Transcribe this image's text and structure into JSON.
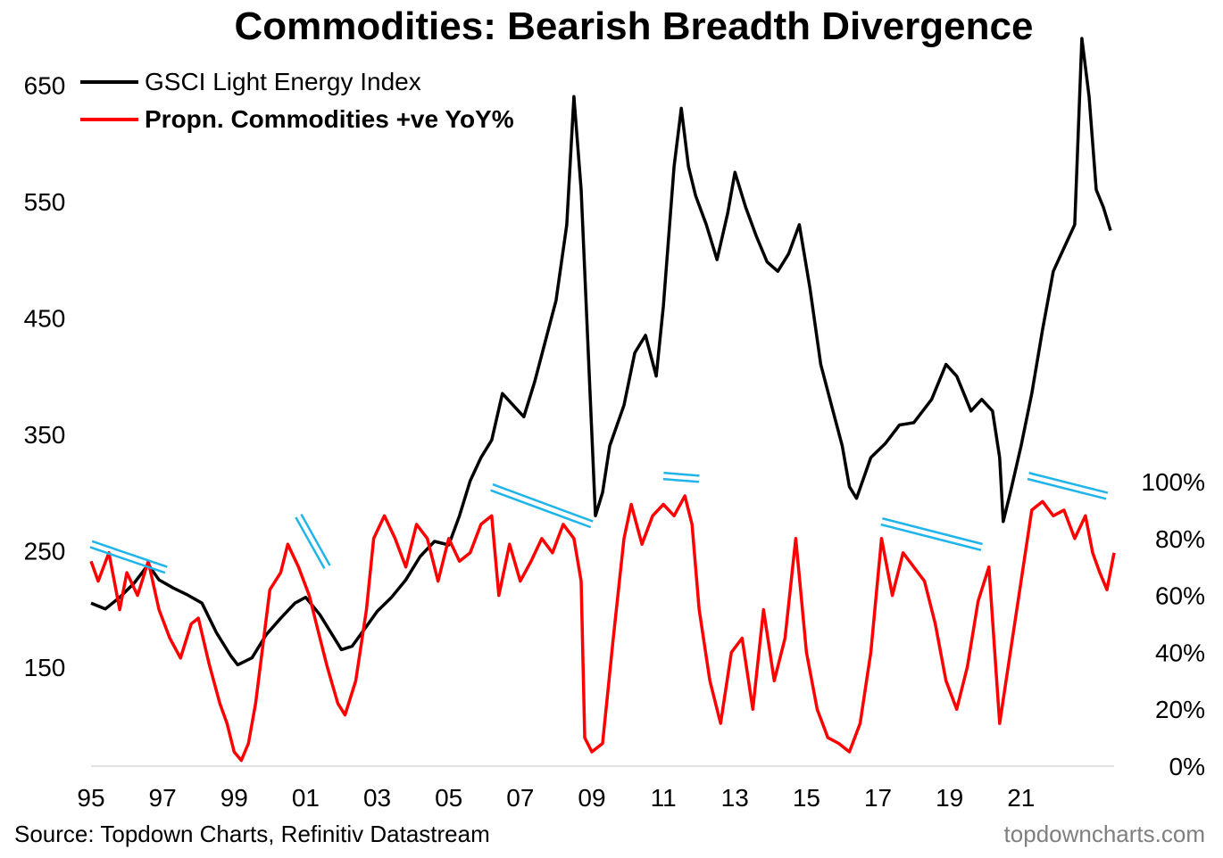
{
  "chart_data": {
    "type": "line",
    "title": "Commodities: Bearish Breadth Divergence",
    "source": "Source: Topdown Charts, Refinitiv Datastream",
    "brand": "topdowncharts.com",
    "x_ticks": [
      "95",
      "97",
      "99",
      "01",
      "03",
      "05",
      "07",
      "09",
      "11",
      "13",
      "15",
      "17",
      "19",
      "21"
    ],
    "x_range": [
      1995.0,
      2023.6
    ],
    "left_axis": {
      "ticks": [
        "650",
        "550",
        "450",
        "350",
        "250",
        "150"
      ],
      "tick_values": [
        650,
        550,
        450,
        350,
        250,
        150
      ],
      "range": [
        65,
        700
      ]
    },
    "right_axis": {
      "ticks": [
        "100%",
        "80%",
        "60%",
        "40%",
        "20%",
        "0%"
      ],
      "tick_values": [
        100,
        80,
        60,
        40,
        20,
        0
      ],
      "range": [
        0,
        100
      ]
    },
    "legend": {
      "position": "top-left"
    },
    "series": [
      {
        "name": "GSCI Light Energy Index",
        "axis": "left",
        "color": "#000000",
        "points": [
          [
            1995.0,
            205
          ],
          [
            1995.4,
            200
          ],
          [
            1995.8,
            210
          ],
          [
            1996.2,
            222
          ],
          [
            1996.6,
            238
          ],
          [
            1996.9,
            225
          ],
          [
            1997.3,
            218
          ],
          [
            1997.7,
            212
          ],
          [
            1998.1,
            205
          ],
          [
            1998.5,
            180
          ],
          [
            1998.9,
            160
          ],
          [
            1999.1,
            152
          ],
          [
            1999.5,
            158
          ],
          [
            1999.9,
            178
          ],
          [
            2000.3,
            192
          ],
          [
            2000.7,
            205
          ],
          [
            2001.0,
            210
          ],
          [
            2001.4,
            195
          ],
          [
            2001.8,
            175
          ],
          [
            2002.0,
            165
          ],
          [
            2002.3,
            168
          ],
          [
            2002.7,
            185
          ],
          [
            2003.0,
            198
          ],
          [
            2003.4,
            210
          ],
          [
            2003.8,
            225
          ],
          [
            2004.2,
            245
          ],
          [
            2004.6,
            258
          ],
          [
            2005.0,
            255
          ],
          [
            2005.3,
            280
          ],
          [
            2005.6,
            310
          ],
          [
            2005.9,
            330
          ],
          [
            2006.2,
            345
          ],
          [
            2006.5,
            385
          ],
          [
            2006.8,
            375
          ],
          [
            2007.1,
            365
          ],
          [
            2007.4,
            395
          ],
          [
            2007.7,
            430
          ],
          [
            2008.0,
            465
          ],
          [
            2008.3,
            530
          ],
          [
            2008.5,
            640
          ],
          [
            2008.7,
            560
          ],
          [
            2008.9,
            420
          ],
          [
            2009.1,
            280
          ],
          [
            2009.3,
            300
          ],
          [
            2009.5,
            340
          ],
          [
            2009.9,
            375
          ],
          [
            2010.2,
            420
          ],
          [
            2010.5,
            435
          ],
          [
            2010.8,
            400
          ],
          [
            2011.0,
            460
          ],
          [
            2011.3,
            580
          ],
          [
            2011.5,
            630
          ],
          [
            2011.7,
            580
          ],
          [
            2011.9,
            555
          ],
          [
            2012.2,
            530
          ],
          [
            2012.5,
            500
          ],
          [
            2012.8,
            540
          ],
          [
            2013.0,
            575
          ],
          [
            2013.3,
            545
          ],
          [
            2013.6,
            520
          ],
          [
            2013.9,
            498
          ],
          [
            2014.2,
            490
          ],
          [
            2014.5,
            505
          ],
          [
            2014.8,
            530
          ],
          [
            2015.1,
            475
          ],
          [
            2015.4,
            410
          ],
          [
            2015.7,
            375
          ],
          [
            2016.0,
            340
          ],
          [
            2016.2,
            305
          ],
          [
            2016.4,
            295
          ],
          [
            2016.8,
            330
          ],
          [
            2017.2,
            342
          ],
          [
            2017.6,
            358
          ],
          [
            2018.0,
            360
          ],
          [
            2018.5,
            380
          ],
          [
            2018.9,
            410
          ],
          [
            2019.2,
            400
          ],
          [
            2019.6,
            370
          ],
          [
            2019.9,
            380
          ],
          [
            2020.2,
            370
          ],
          [
            2020.4,
            330
          ],
          [
            2020.5,
            275
          ],
          [
            2020.7,
            300
          ],
          [
            2021.0,
            340
          ],
          [
            2021.3,
            385
          ],
          [
            2021.6,
            440
          ],
          [
            2021.9,
            490
          ],
          [
            2022.2,
            510
          ],
          [
            2022.5,
            530
          ],
          [
            2022.7,
            690
          ],
          [
            2022.9,
            640
          ],
          [
            2023.1,
            560
          ],
          [
            2023.3,
            545
          ],
          [
            2023.5,
            525
          ]
        ]
      },
      {
        "name": "Propn. Commodities +ve YoY%",
        "axis": "right",
        "color": "#ff0000",
        "points": [
          [
            1995.0,
            72
          ],
          [
            1995.2,
            65
          ],
          [
            1995.5,
            75
          ],
          [
            1995.8,
            55
          ],
          [
            1996.0,
            68
          ],
          [
            1996.3,
            60
          ],
          [
            1996.6,
            72
          ],
          [
            1996.9,
            55
          ],
          [
            1997.2,
            45
          ],
          [
            1997.5,
            38
          ],
          [
            1997.8,
            50
          ],
          [
            1998.0,
            52
          ],
          [
            1998.3,
            36
          ],
          [
            1998.6,
            22
          ],
          [
            1998.8,
            15
          ],
          [
            1999.0,
            5
          ],
          [
            1999.2,
            2
          ],
          [
            1999.4,
            8
          ],
          [
            1999.6,
            22
          ],
          [
            1999.8,
            42
          ],
          [
            2000.0,
            62
          ],
          [
            2000.3,
            68
          ],
          [
            2000.5,
            78
          ],
          [
            2000.8,
            70
          ],
          [
            2001.1,
            60
          ],
          [
            2001.4,
            45
          ],
          [
            2001.6,
            35
          ],
          [
            2001.9,
            22
          ],
          [
            2002.1,
            18
          ],
          [
            2002.4,
            30
          ],
          [
            2002.7,
            55
          ],
          [
            2002.9,
            80
          ],
          [
            2003.2,
            88
          ],
          [
            2003.5,
            80
          ],
          [
            2003.8,
            70
          ],
          [
            2004.1,
            85
          ],
          [
            2004.4,
            80
          ],
          [
            2004.7,
            65
          ],
          [
            2005.0,
            80
          ],
          [
            2005.3,
            72
          ],
          [
            2005.6,
            75
          ],
          [
            2005.9,
            85
          ],
          [
            2006.2,
            88
          ],
          [
            2006.4,
            60
          ],
          [
            2006.7,
            78
          ],
          [
            2007.0,
            65
          ],
          [
            2007.3,
            72
          ],
          [
            2007.6,
            80
          ],
          [
            2007.9,
            75
          ],
          [
            2008.2,
            85
          ],
          [
            2008.5,
            80
          ],
          [
            2008.7,
            65
          ],
          [
            2008.8,
            10
          ],
          [
            2009.0,
            5
          ],
          [
            2009.3,
            8
          ],
          [
            2009.6,
            45
          ],
          [
            2009.9,
            80
          ],
          [
            2010.1,
            92
          ],
          [
            2010.4,
            78
          ],
          [
            2010.7,
            88
          ],
          [
            2011.0,
            92
          ],
          [
            2011.3,
            88
          ],
          [
            2011.6,
            95
          ],
          [
            2011.8,
            85
          ],
          [
            2012.0,
            55
          ],
          [
            2012.3,
            30
          ],
          [
            2012.6,
            15
          ],
          [
            2012.9,
            40
          ],
          [
            2013.2,
            45
          ],
          [
            2013.5,
            20
          ],
          [
            2013.8,
            55
          ],
          [
            2014.1,
            30
          ],
          [
            2014.4,
            45
          ],
          [
            2014.7,
            80
          ],
          [
            2015.0,
            40
          ],
          [
            2015.3,
            20
          ],
          [
            2015.6,
            10
          ],
          [
            2015.9,
            8
          ],
          [
            2016.2,
            5
          ],
          [
            2016.5,
            15
          ],
          [
            2016.8,
            40
          ],
          [
            2017.1,
            80
          ],
          [
            2017.4,
            60
          ],
          [
            2017.7,
            75
          ],
          [
            2018.0,
            70
          ],
          [
            2018.3,
            65
          ],
          [
            2018.6,
            50
          ],
          [
            2018.9,
            30
          ],
          [
            2019.2,
            20
          ],
          [
            2019.5,
            35
          ],
          [
            2019.8,
            58
          ],
          [
            2020.1,
            70
          ],
          [
            2020.4,
            15
          ],
          [
            2020.7,
            40
          ],
          [
            2021.0,
            65
          ],
          [
            2021.3,
            90
          ],
          [
            2021.6,
            93
          ],
          [
            2021.9,
            88
          ],
          [
            2022.2,
            90
          ],
          [
            2022.5,
            80
          ],
          [
            2022.8,
            88
          ],
          [
            2023.0,
            75
          ],
          [
            2023.2,
            68
          ],
          [
            2023.4,
            62
          ],
          [
            2023.6,
            75
          ]
        ]
      }
    ],
    "annotations": {
      "type": "trend-lines",
      "color": "#1fb4ea",
      "segments": [
        [
          [
            1995.0,
            78
          ],
          [
            1997.1,
            69
          ]
        ],
        [
          [
            2000.8,
            88
          ],
          [
            2001.6,
            70
          ]
        ],
        [
          [
            2006.2,
            98
          ],
          [
            2009.0,
            85
          ]
        ],
        [
          [
            2011.0,
            102
          ],
          [
            2012.0,
            101
          ]
        ],
        [
          [
            2017.1,
            86
          ],
          [
            2019.9,
            77
          ]
        ],
        [
          [
            2021.2,
            102
          ],
          [
            2023.4,
            95
          ]
        ]
      ]
    }
  }
}
